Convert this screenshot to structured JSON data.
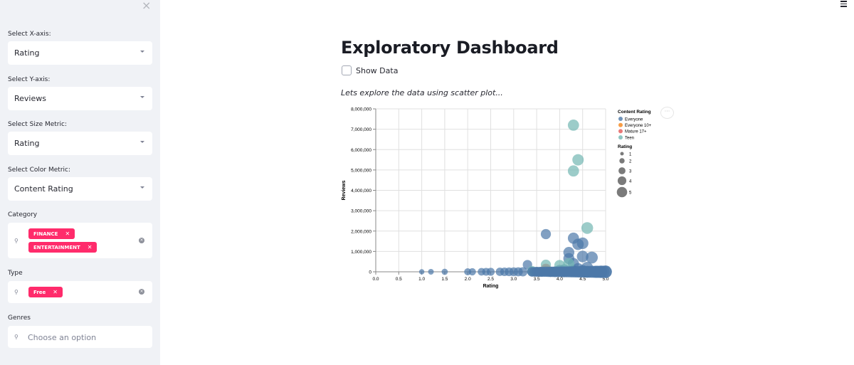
{
  "sidebar": {
    "close_label": "×",
    "x_axis": {
      "label": "Select X-axis:",
      "value": "Rating"
    },
    "y_axis": {
      "label": "Select Y-axis:",
      "value": "Reviews"
    },
    "size_metric": {
      "label": "Select Size Metric:",
      "value": "Rating"
    },
    "color_metric": {
      "label": "Select Color Metric:",
      "value": "Content Rating"
    },
    "category": {
      "label": "Category",
      "chips": [
        "FINANCE",
        "ENTERTAINMENT"
      ]
    },
    "type": {
      "label": "Type",
      "chips": [
        "Free"
      ]
    },
    "genres": {
      "label": "Genres",
      "placeholder": "Choose an option"
    },
    "chip_remove": "✕",
    "search_icon": "⚲",
    "clear_icon": "×"
  },
  "main": {
    "title": "Exploratory Dashboard",
    "show_data_label": "Show Data",
    "caption": "Lets explore the data using scatter plot...",
    "more_label": "···"
  },
  "chart_data": {
    "type": "scatter",
    "title": "",
    "xlabel": "Rating",
    "ylabel": "Reviews",
    "xlim": [
      0,
      5
    ],
    "ylim": [
      0,
      8000000
    ],
    "x_ticks": [
      "0.0",
      "0.5",
      "1.0",
      "1.5",
      "2.0",
      "2.5",
      "3.0",
      "3.5",
      "4.0",
      "4.5",
      "5.0"
    ],
    "y_ticks": [
      "0",
      "1,000,000",
      "2,000,000",
      "3,000,000",
      "4,000,000",
      "5,000,000",
      "6,000,000",
      "7,000,000",
      "8,000,000"
    ],
    "grid": true,
    "legend_position": "right",
    "color_legend": {
      "title": "Content Rating",
      "entries": [
        {
          "label": "Everyone",
          "color": "#4c78a8"
        },
        {
          "label": "Everyone 10+",
          "color": "#f58518"
        },
        {
          "label": "Mature 17+",
          "color": "#e45756"
        },
        {
          "label": "Teen",
          "color": "#72b7b2"
        }
      ]
    },
    "size_legend": {
      "title": "Rating",
      "entries": [
        "1",
        "2",
        "3",
        "4",
        "5"
      ]
    },
    "series": [
      {
        "name": "Everyone",
        "color": "#4c78a8",
        "points": [
          [
            1.0,
            0
          ],
          [
            1.2,
            0
          ],
          [
            1.5,
            0
          ],
          [
            2.0,
            0
          ],
          [
            2.1,
            0
          ],
          [
            2.3,
            0
          ],
          [
            2.4,
            0
          ],
          [
            2.5,
            0
          ],
          [
            2.7,
            0
          ],
          [
            2.8,
            0
          ],
          [
            2.9,
            0
          ],
          [
            3.0,
            0
          ],
          [
            3.1,
            0
          ],
          [
            3.2,
            0
          ],
          [
            3.3,
            350000
          ],
          [
            3.4,
            0
          ],
          [
            3.5,
            0
          ],
          [
            3.6,
            0
          ],
          [
            3.7,
            1850000
          ],
          [
            3.7,
            60000
          ],
          [
            3.8,
            0
          ],
          [
            3.9,
            0
          ],
          [
            4.0,
            80000
          ],
          [
            4.1,
            0
          ],
          [
            4.2,
            950000
          ],
          [
            4.2,
            650000
          ],
          [
            4.3,
            1650000
          ],
          [
            4.3,
            400000
          ],
          [
            4.4,
            1350000
          ],
          [
            4.5,
            1400000
          ],
          [
            4.5,
            750000
          ],
          [
            4.6,
            0
          ],
          [
            4.7,
            700000
          ],
          [
            4.8,
            0
          ],
          [
            4.9,
            0
          ],
          [
            5.0,
            0
          ],
          [
            4.1,
            100000
          ],
          [
            4.4,
            150000
          ],
          [
            4.6,
            200000
          ],
          [
            4.3,
            50000
          ],
          [
            4.5,
            50000
          ]
        ]
      },
      {
        "name": "Mature 17+",
        "color": "#e45756",
        "points": [
          [
            3.7,
            150000
          ]
        ]
      },
      {
        "name": "Teen",
        "color": "#72b7b2",
        "points": [
          [
            4.3,
            7200000
          ],
          [
            4.4,
            5500000
          ],
          [
            4.3,
            4950000
          ],
          [
            4.6,
            2150000
          ],
          [
            3.7,
            350000
          ],
          [
            4.0,
            320000
          ],
          [
            3.4,
            50000
          ],
          [
            4.2,
            400000
          ]
        ]
      }
    ]
  }
}
